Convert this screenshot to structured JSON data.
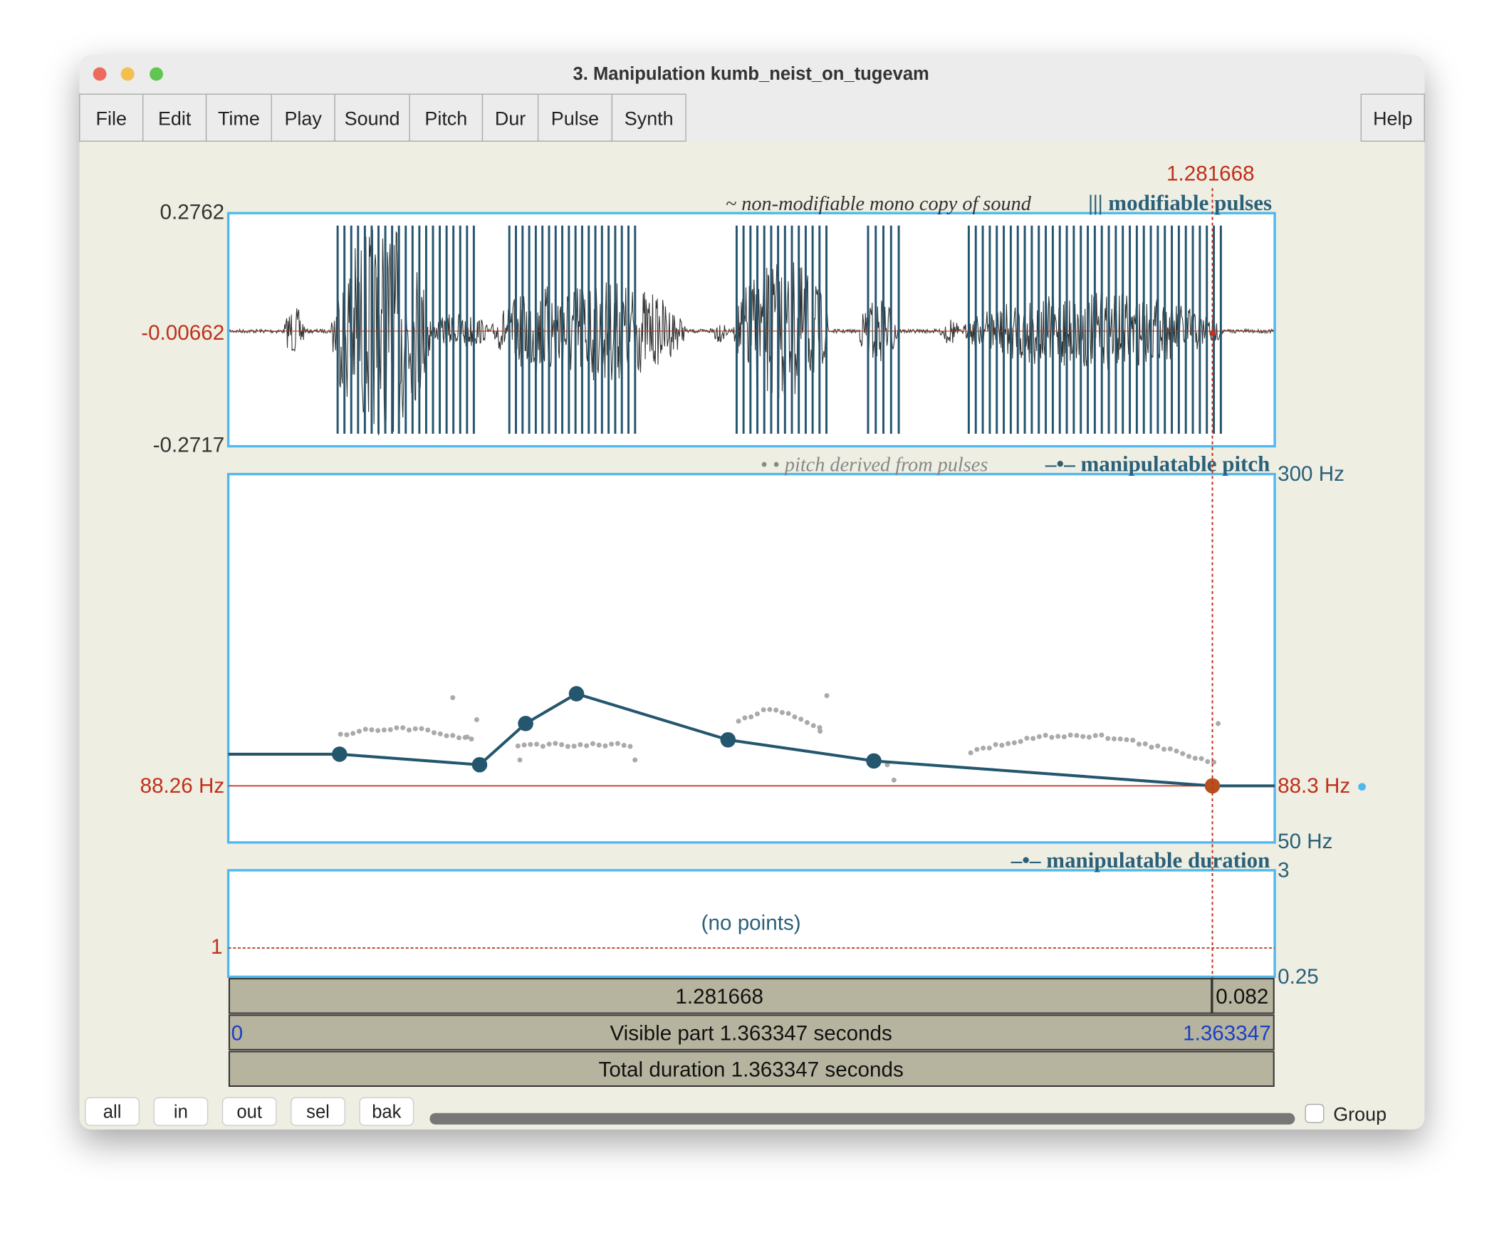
{
  "window": {
    "title": "3. Manipulation kumb_neist_on_tugevam"
  },
  "menu": {
    "items": [
      "File",
      "Edit",
      "Time",
      "Play",
      "Sound",
      "Pitch",
      "Dur",
      "Pulse",
      "Synth"
    ],
    "help": "Help"
  },
  "cursor": {
    "time": "1.281668"
  },
  "sound": {
    "label_sound": "~ non-modifiable mono copy of sound",
    "label_pulses": "||| modifiable pulses",
    "top": "0.2762",
    "mid": "-0.00662",
    "bottom": "-0.2717"
  },
  "pitch": {
    "label_derived": "• • pitch derived from pulses",
    "label_manip": "–•– manipulatable pitch",
    "top": "300 Hz",
    "cursor_left": "88.26 Hz",
    "cursor_right": "88.3 Hz",
    "bottom": "50 Hz"
  },
  "duration": {
    "label": "–•– manipulatable duration",
    "top": "3",
    "empty": "(no points)",
    "cursor_left": "1",
    "bottom": "0.25"
  },
  "bars": {
    "cursor_left": "1.281668",
    "cursor_right": "0.082",
    "visible_start": "0",
    "visible": "Visible part 1.363347 seconds",
    "visible_end": "1.363347",
    "total": "Total duration 1.363347 seconds"
  },
  "buttons": [
    "all",
    "in",
    "out",
    "sel",
    "bak"
  ],
  "group": "Group"
}
